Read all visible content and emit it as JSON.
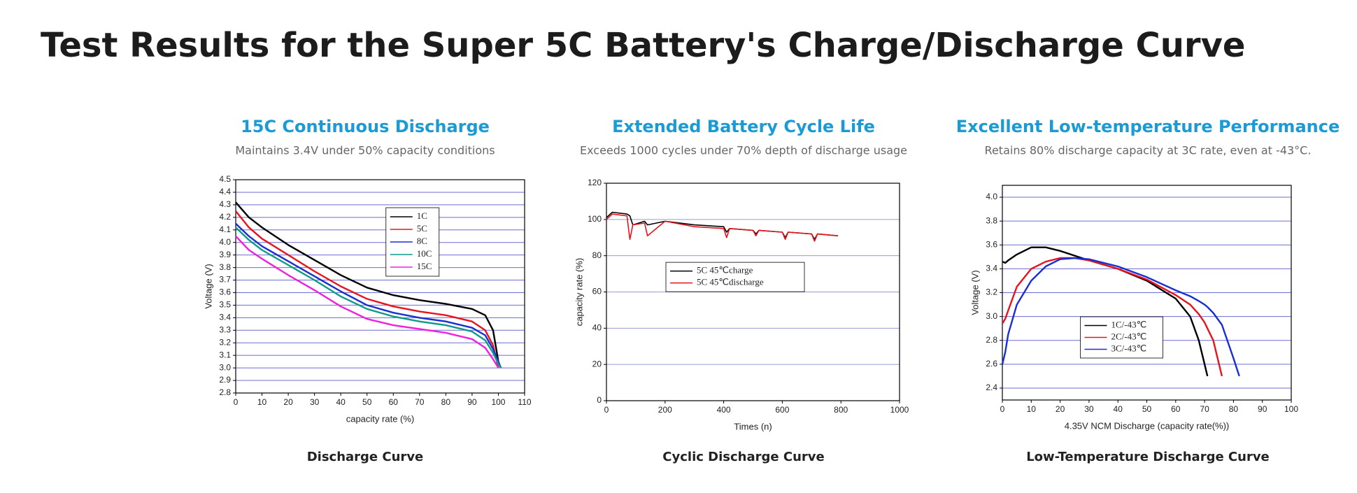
{
  "title": "Test Results for the Super 5C Battery's Charge/Discharge Curve",
  "chart_data": [
    {
      "type": "line",
      "title": "15C Continuous Discharge",
      "subtitle": "Maintains 3.4V under 50% capacity conditions",
      "caption": "Discharge Curve",
      "xlabel": "capacity rate (%)",
      "ylabel": "Voltage (V)",
      "x": [
        0,
        5,
        10,
        20,
        30,
        40,
        50,
        60,
        70,
        80,
        90,
        95,
        98,
        100,
        101
      ],
      "series": [
        {
          "name": "1C",
          "color": "#000000",
          "values": [
            4.32,
            4.2,
            4.12,
            3.98,
            3.86,
            3.74,
            3.64,
            3.58,
            3.54,
            3.51,
            3.47,
            3.42,
            3.3,
            3.05,
            null
          ]
        },
        {
          "name": "5C",
          "color": "#e8141c",
          "values": [
            4.25,
            4.12,
            4.03,
            3.9,
            3.77,
            3.65,
            3.55,
            3.49,
            3.45,
            3.42,
            3.37,
            3.3,
            3.18,
            3.0,
            null
          ]
        },
        {
          "name": "8C",
          "color": "#1a2fd0",
          "values": [
            4.15,
            4.05,
            3.97,
            3.85,
            3.73,
            3.61,
            3.5,
            3.44,
            3.4,
            3.37,
            3.32,
            3.26,
            3.15,
            3.05,
            3.0
          ]
        },
        {
          "name": "10C",
          "color": "#0f9a8a",
          "values": [
            4.12,
            4.02,
            3.94,
            3.82,
            3.7,
            3.57,
            3.47,
            3.41,
            3.37,
            3.34,
            3.29,
            3.22,
            3.12,
            3.03,
            3.0
          ]
        },
        {
          "name": "15C",
          "color": "#ee22dd",
          "values": [
            4.05,
            3.94,
            3.87,
            3.74,
            3.62,
            3.49,
            3.39,
            3.34,
            3.31,
            3.28,
            3.23,
            3.16,
            3.07,
            3.0,
            null
          ]
        }
      ],
      "xlim": [
        0,
        110
      ],
      "xticks": [
        0,
        10,
        20,
        30,
        40,
        50,
        60,
        70,
        80,
        90,
        100,
        110
      ],
      "ylim": [
        2.8,
        4.5
      ],
      "yticks": [
        2.8,
        2.9,
        {
          "value": 3,
          "label": "3.0"
        },
        3.1,
        3.2,
        3.3,
        3.4,
        3.5,
        3.6,
        3.7,
        3.8,
        3.9,
        {
          "value": 4,
          "label": "4.0"
        },
        4.1,
        4.2,
        4.3,
        4.4,
        4.5
      ],
      "grid": true,
      "legend": "upper center"
    },
    {
      "type": "line",
      "title": "Extended Battery Cycle Life",
      "subtitle": "Exceeds 1000 cycles under 70% depth of discharge usage",
      "caption": "Cyclic Discharge Curve",
      "xlabel": "Times (n)",
      "ylabel": "capacity rate (%)",
      "x": [
        0,
        20,
        70,
        80,
        90,
        130,
        140,
        200,
        300,
        400,
        410,
        420,
        500,
        510,
        520,
        600,
        610,
        620,
        700,
        710,
        720,
        790
      ],
      "series": [
        {
          "name": "5C 45℃charge",
          "color": "#000000",
          "values": [
            101,
            104,
            103,
            102,
            97,
            99,
            97,
            99,
            97,
            96,
            93,
            95,
            94,
            92,
            94,
            93,
            90,
            93,
            92,
            89,
            92,
            91
          ]
        },
        {
          "name": "5C 45℃discharge",
          "color": "#e8141c",
          "values": [
            100,
            103,
            102,
            89,
            97,
            98,
            91,
            99,
            96,
            95,
            90,
            95,
            94,
            91,
            94,
            93,
            89,
            93,
            92,
            88,
            92,
            91
          ]
        }
      ],
      "xlim": [
        0,
        1000
      ],
      "xticks": [
        0,
        200,
        400,
        600,
        800,
        1000
      ],
      "ylim": [
        0,
        120
      ],
      "yticks": [
        0,
        20,
        40,
        60,
        80,
        100,
        120
      ],
      "grid": true,
      "legend": "center left"
    },
    {
      "type": "line",
      "title": "Excellent Low-temperature Performance",
      "subtitle": "Retains 80% discharge capacity at 3C rate, even at -43°C.",
      "caption": "Low-Temperature Discharge Curve",
      "xlabel": "4.35V NCM Discharge (capacity rate(%))",
      "ylabel": "Voltage (V)",
      "x": [
        0,
        1,
        2,
        5,
        10,
        15,
        20,
        25,
        30,
        40,
        50,
        60,
        65,
        68,
        70,
        71,
        73,
        76,
        80,
        82
      ],
      "series": [
        {
          "name": "1C/-43℃",
          "color": "#000000",
          "values": [
            3.46,
            3.45,
            3.47,
            3.52,
            3.58,
            3.58,
            3.55,
            3.51,
            3.47,
            3.4,
            3.3,
            3.15,
            3.0,
            2.8,
            2.6,
            2.5,
            null,
            null,
            null,
            null
          ]
        },
        {
          "name": "2C/-43℃",
          "color": "#e8141c",
          "values": [
            2.94,
            2.98,
            3.05,
            3.25,
            3.4,
            3.46,
            3.49,
            3.49,
            3.47,
            3.4,
            3.31,
            3.18,
            3.1,
            3.02,
            2.95,
            2.9,
            2.8,
            2.5,
            null,
            null
          ]
        },
        {
          "name": "3C/-43℃",
          "color": "#1a2fd0",
          "values": [
            2.6,
            2.7,
            2.85,
            3.1,
            3.3,
            3.42,
            3.48,
            3.49,
            3.48,
            3.42,
            3.33,
            3.22,
            3.17,
            3.13,
            3.1,
            3.08,
            3.03,
            2.93,
            2.65,
            2.5
          ]
        }
      ],
      "xlim": [
        0,
        100
      ],
      "xticks": [
        0,
        10,
        20,
        30,
        40,
        50,
        60,
        70,
        80,
        90,
        100
      ],
      "ylim": [
        2.3,
        4.1
      ],
      "yticks": [
        2.4,
        2.6,
        2.8,
        {
          "value": 3,
          "label": "3.0"
        },
        3.2,
        3.4,
        3.6,
        3.8,
        {
          "value": 4,
          "label": "4.0"
        }
      ],
      "grid": true,
      "legend": "lower center"
    }
  ]
}
